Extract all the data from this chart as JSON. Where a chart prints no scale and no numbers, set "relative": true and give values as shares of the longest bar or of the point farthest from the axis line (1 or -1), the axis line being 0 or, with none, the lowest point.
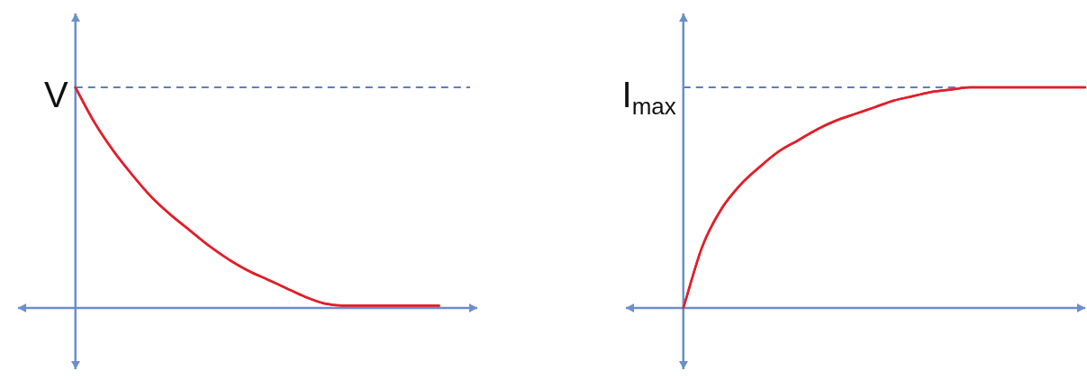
{
  "chart_data": [
    {
      "type": "line",
      "relative": true,
      "categories": [
        null,
        null,
        null,
        null,
        null,
        null,
        null,
        null,
        null,
        null,
        null,
        null,
        null,
        null,
        null,
        null,
        null,
        null,
        null,
        null,
        null,
        null,
        null,
        null,
        null
      ],
      "series": [
        {
          "color": "#e0202a",
          "values": [
            null,
            null,
            null,
            1.0,
            0.84,
            0.71,
            0.6,
            0.5,
            0.42,
            0.35,
            0.28,
            0.22,
            0.17,
            0.13,
            0.09,
            0.05,
            0.02,
            0.01,
            0.01,
            0.01,
            0.01,
            0.01,
            0.01,
            null,
            null
          ]
        }
      ],
      "ref_lines": [
        {
          "axis": "y",
          "value": 1,
          "label": "V",
          "color": "#5b7fbf",
          "line_style": "dashed"
        }
      ],
      "marker": "none",
      "line_style": "solid",
      "tick_labels": false
    },
    {
      "type": "line",
      "relative": true,
      "categories": [
        null,
        null,
        null,
        null,
        null,
        null,
        null,
        null,
        null,
        null,
        null,
        null,
        null,
        null,
        null,
        null,
        null,
        null,
        null,
        null,
        null,
        null,
        null,
        null,
        null
      ],
      "series": [
        {
          "color": "#e0202a",
          "values": [
            null,
            null,
            null,
            0,
            0.28,
            0.45,
            0.56,
            0.64,
            0.71,
            0.76,
            0.81,
            0.85,
            0.88,
            0.91,
            0.94,
            0.96,
            0.98,
            0.99,
            1.0,
            1.0,
            1.0,
            1.0,
            1.0,
            1.0,
            1.0
          ]
        }
      ],
      "ref_lines": [
        {
          "axis": "y",
          "value": 1,
          "label": "I$_{max}$",
          "color": "#5b7fbf",
          "line_style": "dashed"
        }
      ],
      "marker": "none",
      "line_style": "solid",
      "tick_labels": false
    }
  ]
}
